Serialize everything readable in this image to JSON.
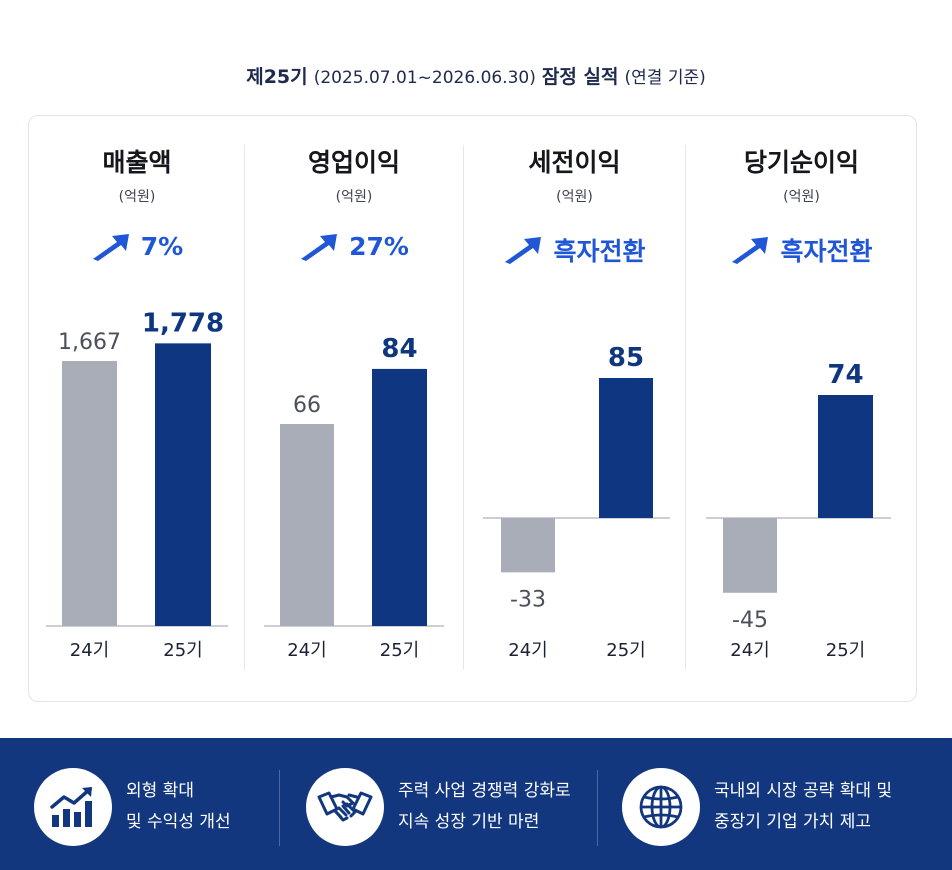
{
  "header": {
    "title_bold": "제25기",
    "title_period": "(2025.07.01~2026.06.30)",
    "title_main": "잠정 실적",
    "title_basis": "(연결 기준)"
  },
  "chart_data": [
    {
      "type": "bar",
      "title": "매출액",
      "unit": "(억원)",
      "change_label": "7%",
      "categories": [
        "24기",
        "25기"
      ],
      "values": [
        1667,
        1778
      ],
      "value_labels": [
        "1,667",
        "1,778"
      ],
      "colors": [
        "#a9adb7",
        "#0f3680"
      ]
    },
    {
      "type": "bar",
      "title": "영업이익",
      "unit": "(억원)",
      "change_label": "27%",
      "categories": [
        "24기",
        "25기"
      ],
      "values": [
        66,
        84
      ],
      "value_labels": [
        "66",
        "84"
      ],
      "colors": [
        "#a9adb7",
        "#0f3680"
      ]
    },
    {
      "type": "bar",
      "title": "세전이익",
      "unit": "(억원)",
      "change_label": "흑자전환",
      "categories": [
        "24기",
        "25기"
      ],
      "values": [
        -33,
        85
      ],
      "value_labels": [
        "-33",
        "85"
      ],
      "colors": [
        "#a9adb7",
        "#0f3680"
      ]
    },
    {
      "type": "bar",
      "title": "당기순이익",
      "unit": "(억원)",
      "change_label": "흑자전환",
      "categories": [
        "24기",
        "25기"
      ],
      "values": [
        -45,
        74
      ],
      "value_labels": [
        "-45",
        "74"
      ],
      "colors": [
        "#a9adb7",
        "#0f3680"
      ]
    }
  ],
  "footer": {
    "items": [
      {
        "icon": "growth-chart-icon",
        "line1": "외형 확대",
        "line2": "및 수익성 개선"
      },
      {
        "icon": "handshake-icon",
        "line1": "주력 사업 경쟁력 강화로",
        "line2": "지속 성장 기반 마련"
      },
      {
        "icon": "globe-icon",
        "line1": "국내외 시장 공략 확대 및",
        "line2": "중장기 기업 가치 제고"
      }
    ]
  },
  "colors": {
    "accent": "#1f57d6",
    "navy": "#0f3680",
    "gray": "#a9adb7",
    "footer_bg": "#13377e"
  }
}
